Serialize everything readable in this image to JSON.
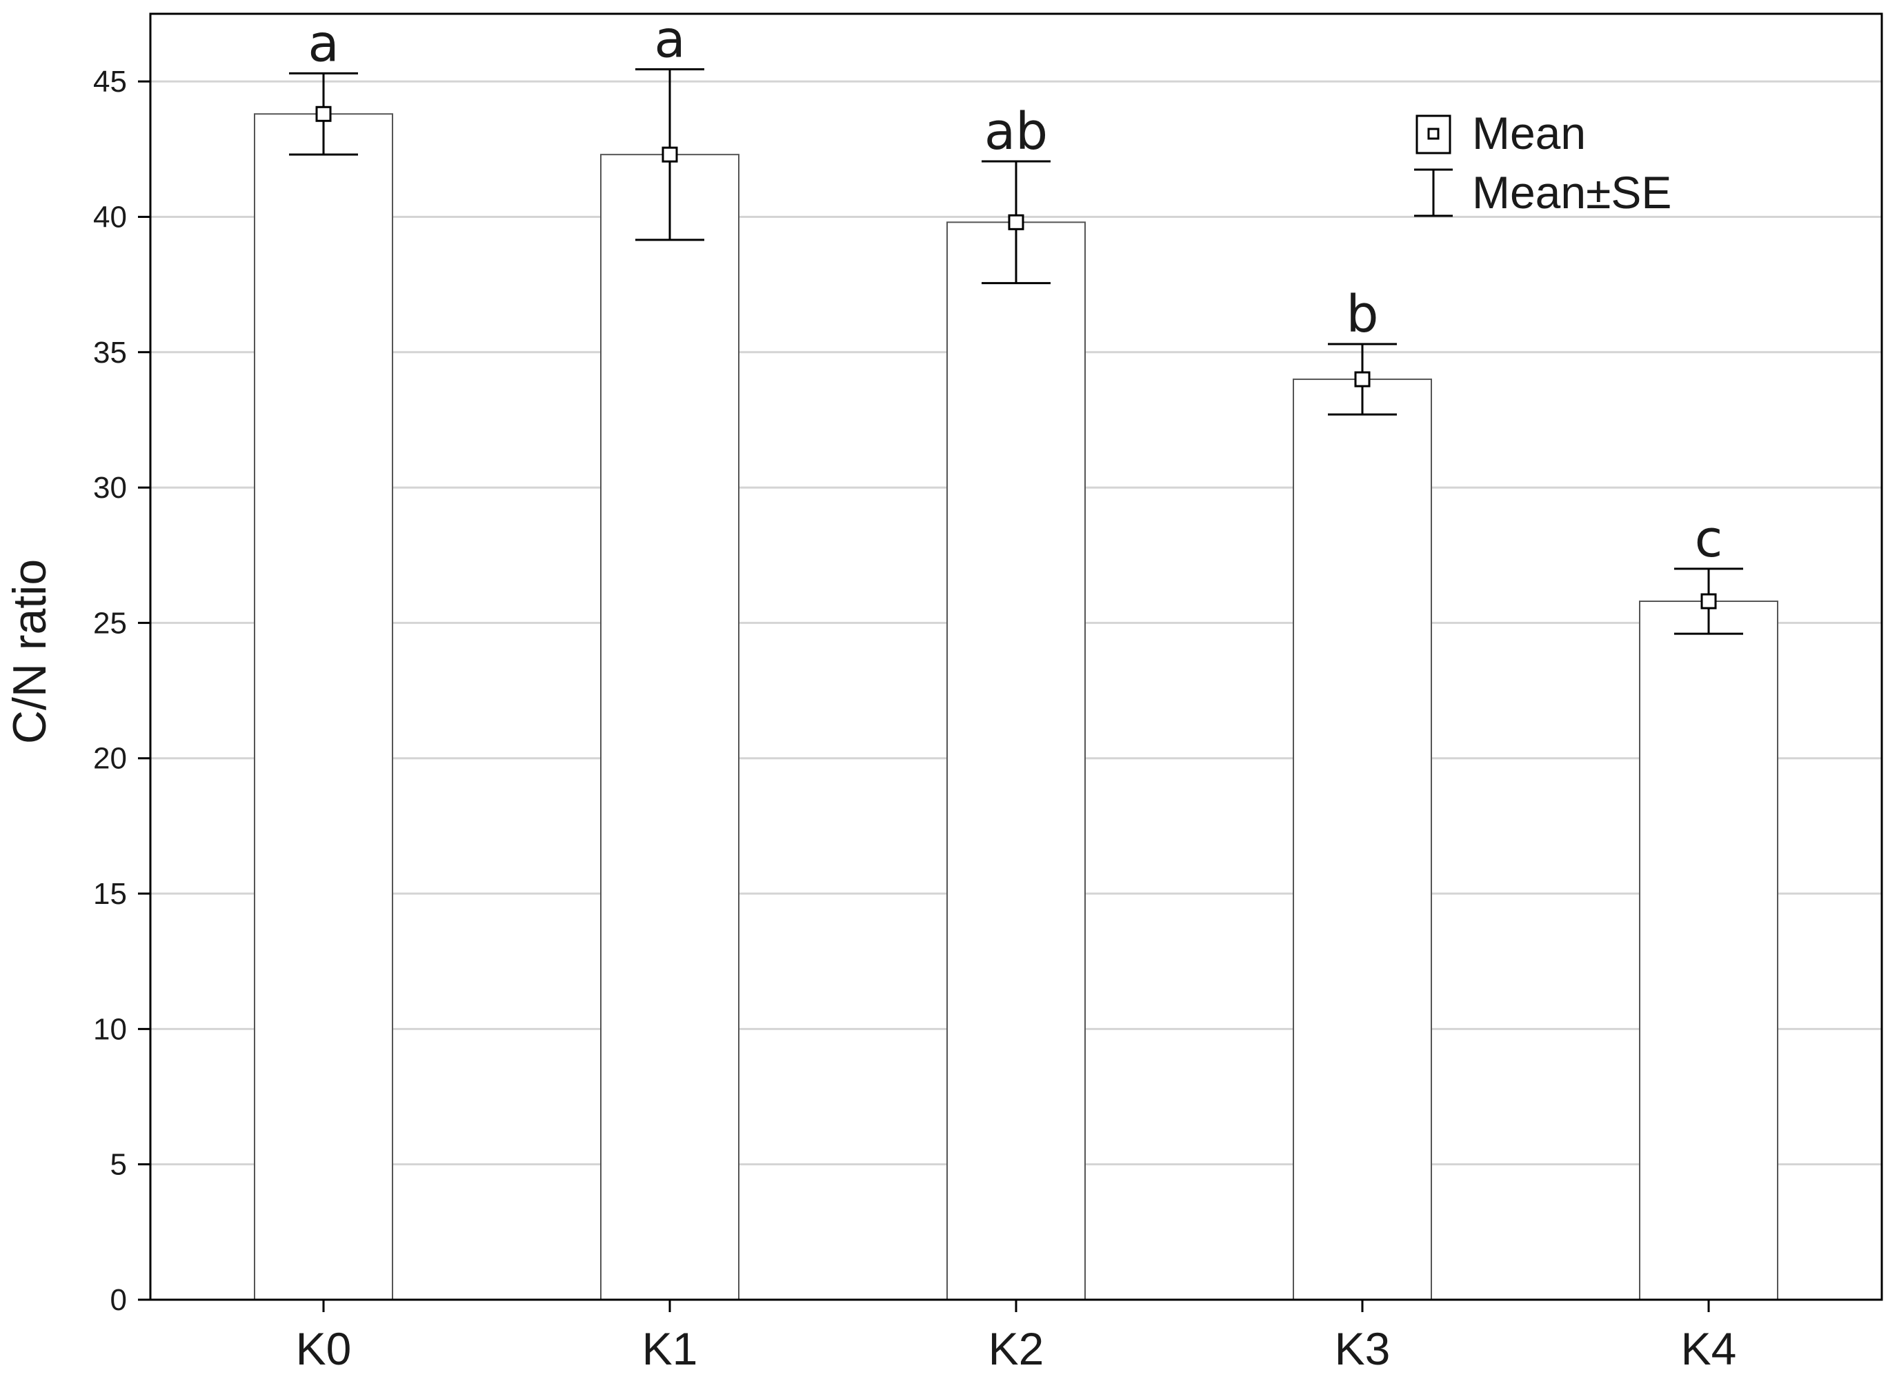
{
  "chart_data": {
    "type": "bar",
    "title": "",
    "xlabel": "",
    "ylabel": "C/N ratio",
    "categories": [
      "K0",
      "K1",
      "K2",
      "K3",
      "K4"
    ],
    "series": [
      {
        "name": "Mean",
        "values": [
          43.8,
          42.3,
          39.8,
          34.0,
          25.8
        ],
        "se": [
          1.5,
          3.15,
          2.25,
          1.3,
          1.2
        ]
      }
    ],
    "significance_letters": [
      "a",
      "a",
      "ab",
      "b",
      "c"
    ],
    "ylim": [
      0,
      47.5
    ],
    "yticks": [
      0,
      5,
      10,
      15,
      20,
      25,
      30,
      35,
      40,
      45
    ],
    "grid": "horizontal",
    "legend": {
      "placement": "top-right",
      "mean_label": "Mean",
      "se_label": "Mean±SE"
    },
    "colors": {
      "bar_fill": "#ffffff",
      "bar_stroke": "#555555",
      "axis": "#000000",
      "grid": "#d4d4d4",
      "error_bar": "#000000"
    }
  }
}
